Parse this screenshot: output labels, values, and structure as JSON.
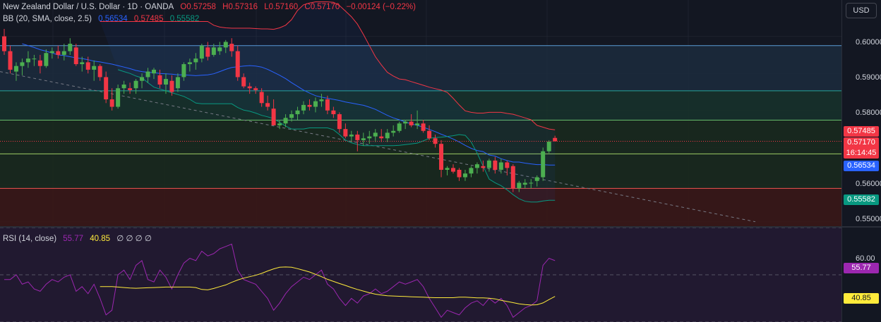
{
  "header": {
    "symbol": "New Zealand Dollar / U.S. Dollar · 1D · OANDA",
    "open": "O0.57258",
    "high": "H0.57316",
    "low": "L0.57160",
    "close": "C0.57170",
    "change": "−0.00124 (−0.22%)",
    "bb_label": "BB (20, SMA, close, 2.5)",
    "bb_basis": "0.56534",
    "bb_upper": "0.57485",
    "bb_lower": "0.55582",
    "rsi_label": "RSI (14, close)",
    "rsi_value": "55.77",
    "rsi_ma": "40.85",
    "rsi_nulls": "∅ ∅ ∅ ∅"
  },
  "currency_button": "USD",
  "price_axis": {
    "ticks": [
      "0.60000",
      "0.59000",
      "0.58000",
      "0.56000",
      "0.55000"
    ],
    "tags": {
      "upper": "0.57485",
      "last": "0.57170",
      "countdown": "16:14:45",
      "basis": "0.56534",
      "lower": "0.55582"
    }
  },
  "rsi_axis": {
    "ticks": [
      "60.00"
    ],
    "tags": {
      "rsi": "55.77",
      "ma": "40.85"
    }
  },
  "colors": {
    "background": "#131722",
    "up": "#4caf50",
    "down": "#f23645",
    "bb_basis": "#2962ff",
    "bb_upper": "#f23645",
    "bb_lower": "#089981",
    "rsi": "#9c27b0",
    "rsi_ma": "#ffeb3b"
  },
  "chart_data": [
    {
      "type": "candlestick",
      "title": "New Zealand Dollar / U.S. Dollar · 1D · OANDA",
      "ylim": [
        0.5488,
        0.6098
      ],
      "candles": [
        [
          0.6,
          0.602,
          0.595,
          0.596
        ],
        [
          0.596,
          0.5975,
          0.59,
          0.591
        ],
        [
          0.5905,
          0.593,
          0.588,
          0.592
        ],
        [
          0.592,
          0.594,
          0.5895,
          0.593
        ],
        [
          0.593,
          0.596,
          0.5915,
          0.594
        ],
        [
          0.594,
          0.595,
          0.592,
          0.594
        ],
        [
          0.5935,
          0.595,
          0.59,
          0.592
        ],
        [
          0.592,
          0.5965,
          0.5915,
          0.5955
        ],
        [
          0.5955,
          0.597,
          0.594,
          0.596
        ],
        [
          0.596,
          0.5975,
          0.594,
          0.595
        ],
        [
          0.595,
          0.598,
          0.5935,
          0.596
        ],
        [
          0.596,
          0.5995,
          0.595,
          0.598
        ],
        [
          0.597,
          0.598,
          0.592,
          0.5925
        ],
        [
          0.5925,
          0.5945,
          0.5905,
          0.593
        ],
        [
          0.593,
          0.5945,
          0.59,
          0.591
        ],
        [
          0.591,
          0.5935,
          0.588,
          0.592
        ],
        [
          0.592,
          0.5925,
          0.588,
          0.589
        ],
        [
          0.589,
          0.5905,
          0.582,
          0.583
        ],
        [
          0.583,
          0.586,
          0.58,
          0.581
        ],
        [
          0.581,
          0.587,
          0.5805,
          0.586
        ],
        [
          0.586,
          0.588,
          0.5845,
          0.587
        ],
        [
          0.586,
          0.5875,
          0.5845,
          0.5855
        ],
        [
          0.586,
          0.5885,
          0.5845,
          0.588
        ],
        [
          0.588,
          0.59,
          0.586,
          0.589
        ],
        [
          0.589,
          0.5915,
          0.5875,
          0.5905
        ],
        [
          0.59,
          0.5915,
          0.5885,
          0.591
        ],
        [
          0.5895,
          0.591,
          0.586,
          0.587
        ],
        [
          0.587,
          0.59,
          0.5845,
          0.5885
        ],
        [
          0.588,
          0.5895,
          0.584,
          0.585
        ],
        [
          0.586,
          0.59,
          0.585,
          0.589
        ],
        [
          0.589,
          0.593,
          0.588,
          0.5925
        ],
        [
          0.5925,
          0.594,
          0.5905,
          0.593
        ],
        [
          0.593,
          0.5955,
          0.591,
          0.594
        ],
        [
          0.594,
          0.598,
          0.593,
          0.5975
        ],
        [
          0.597,
          0.5985,
          0.5935,
          0.5945
        ],
        [
          0.595,
          0.598,
          0.5945,
          0.597
        ],
        [
          0.596,
          0.5985,
          0.595,
          0.597
        ],
        [
          0.597,
          0.599,
          0.5955,
          0.5985
        ],
        [
          0.598,
          0.5995,
          0.5945,
          0.596
        ],
        [
          0.596,
          0.5975,
          0.588,
          0.589
        ],
        [
          0.589,
          0.59,
          0.586,
          0.5865
        ],
        [
          0.5865,
          0.5875,
          0.5845,
          0.586
        ],
        [
          0.586,
          0.5865,
          0.5845,
          0.5855
        ],
        [
          0.585,
          0.586,
          0.581,
          0.582
        ],
        [
          0.582,
          0.584,
          0.58,
          0.581
        ],
        [
          0.5805,
          0.583,
          0.576,
          0.576
        ],
        [
          0.576,
          0.5775,
          0.575,
          0.5765
        ],
        [
          0.5765,
          0.579,
          0.5755,
          0.578
        ],
        [
          0.578,
          0.58,
          0.577,
          0.579
        ],
        [
          0.579,
          0.581,
          0.5775,
          0.58
        ],
        [
          0.58,
          0.5825,
          0.579,
          0.5815
        ],
        [
          0.5815,
          0.583,
          0.58,
          0.581
        ],
        [
          0.581,
          0.5835,
          0.5795,
          0.5825
        ],
        [
          0.5825,
          0.5845,
          0.581,
          0.583
        ],
        [
          0.583,
          0.584,
          0.579,
          0.58
        ],
        [
          0.58,
          0.581,
          0.578,
          0.579
        ],
        [
          0.579,
          0.5795,
          0.574,
          0.575
        ],
        [
          0.575,
          0.5765,
          0.5725,
          0.573
        ],
        [
          0.573,
          0.5745,
          0.5715,
          0.5735
        ],
        [
          0.5735,
          0.5745,
          0.569,
          0.572
        ],
        [
          0.572,
          0.574,
          0.5705,
          0.5725
        ],
        [
          0.5725,
          0.5745,
          0.571,
          0.573
        ],
        [
          0.573,
          0.575,
          0.5715,
          0.574
        ],
        [
          0.573,
          0.575,
          0.5715,
          0.5725
        ],
        [
          0.5725,
          0.575,
          0.5715,
          0.574
        ],
        [
          0.574,
          0.576,
          0.573,
          0.5745
        ],
        [
          0.5745,
          0.577,
          0.574,
          0.5765
        ],
        [
          0.5765,
          0.5775,
          0.575,
          0.577
        ],
        [
          0.577,
          0.579,
          0.5755,
          0.576
        ],
        [
          0.576,
          0.58,
          0.575,
          0.5765
        ],
        [
          0.5765,
          0.5775,
          0.574,
          0.5745
        ],
        [
          0.5745,
          0.576,
          0.572,
          0.5725
        ],
        [
          0.5725,
          0.5735,
          0.57,
          0.571
        ],
        [
          0.571,
          0.572,
          0.562,
          0.564
        ],
        [
          0.564,
          0.565,
          0.5625,
          0.5645
        ],
        [
          0.5645,
          0.5655,
          0.563,
          0.5635
        ],
        [
          0.564,
          0.5645,
          0.561,
          0.562
        ],
        [
          0.562,
          0.564,
          0.561,
          0.563
        ],
        [
          0.563,
          0.565,
          0.562,
          0.5645
        ],
        [
          0.5645,
          0.566,
          0.563,
          0.5655
        ],
        [
          0.565,
          0.5665,
          0.5635,
          0.5645
        ],
        [
          0.5645,
          0.567,
          0.5635,
          0.5665
        ],
        [
          0.5665,
          0.5675,
          0.563,
          0.564
        ],
        [
          0.564,
          0.567,
          0.563,
          0.566
        ],
        [
          0.566,
          0.5665,
          0.5625,
          0.5645
        ],
        [
          0.565,
          0.5655,
          0.558,
          0.559
        ],
        [
          0.559,
          0.561,
          0.558,
          0.5605
        ],
        [
          0.56,
          0.5615,
          0.559,
          0.5605
        ],
        [
          0.5605,
          0.5615,
          0.559,
          0.5605
        ],
        [
          0.561,
          0.5625,
          0.5595,
          0.562
        ],
        [
          0.562,
          0.57,
          0.561,
          0.569
        ],
        [
          0.569,
          0.572,
          0.5685,
          0.5716
        ],
        [
          0.5726,
          0.5732,
          0.5716,
          0.5717
        ]
      ],
      "bb_upper": [
        0.604,
        0.604,
        0.604,
        0.604,
        0.604,
        0.604,
        0.604,
        0.604,
        0.604,
        0.604,
        0.604,
        0.604,
        0.604,
        0.604,
        0.604,
        0.604,
        0.604,
        0.604,
        0.604,
        0.603,
        0.6025,
        0.6023,
        0.6022,
        0.6022,
        0.6022,
        0.6022,
        0.6021,
        0.602,
        0.602,
        0.6019,
        0.6023,
        0.603,
        0.6045,
        0.607,
        0.6085,
        0.609,
        0.6093,
        0.6093,
        0.6093,
        0.6092,
        0.6083,
        0.6068,
        0.6053,
        0.6033,
        0.6005,
        0.5975,
        0.5945,
        0.5923,
        0.5903,
        0.5893,
        0.5885,
        0.5883,
        0.5878,
        0.5873,
        0.5868,
        0.5863,
        0.5859,
        0.5855,
        0.5849,
        0.5833,
        0.5815,
        0.5799,
        0.5795,
        0.5793,
        0.5793,
        0.5795,
        0.5795,
        0.5795,
        0.5792,
        0.579,
        0.5785,
        0.578,
        0.5775,
        0.576,
        0.5755,
        0.575,
        0.5748
      ],
      "bb_basis": [
        0.598,
        0.5975,
        0.597,
        0.5964,
        0.596,
        0.5955,
        0.595,
        0.5948,
        0.5945,
        0.5942,
        0.594,
        0.5937,
        0.5933,
        0.5931,
        0.5928,
        0.5925,
        0.5921,
        0.5917,
        0.5913,
        0.5908,
        0.5905,
        0.5903,
        0.5902,
        0.59,
        0.5899,
        0.5898,
        0.5896,
        0.5896,
        0.5895,
        0.5894,
        0.5895,
        0.5896,
        0.5899,
        0.5905,
        0.5911,
        0.5916,
        0.5918,
        0.592,
        0.5921,
        0.592,
        0.5917,
        0.5911,
        0.5903,
        0.5895,
        0.5886,
        0.5875,
        0.5865,
        0.5855,
        0.5847,
        0.584,
        0.5836,
        0.5833,
        0.583,
        0.5827,
        0.5823,
        0.582,
        0.5817,
        0.5814,
        0.5809,
        0.5803,
        0.5795,
        0.5787,
        0.578,
        0.5775,
        0.5769,
        0.5764,
        0.576,
        0.5755,
        0.5749,
        0.5743,
        0.5736,
        0.573,
        0.5723,
        0.5715,
        0.5706,
        0.5698,
        0.5692,
        0.5689,
        0.568,
        0.5677,
        0.567,
        0.5665,
        0.5661,
        0.5661,
        0.5658,
        0.5656,
        0.5654,
        0.5654,
        0.5653,
        0.5653
      ],
      "bb_lower": [
        0.591,
        0.5905,
        0.59,
        0.5893,
        0.5888,
        0.5875,
        0.5863,
        0.5858,
        0.5853,
        0.5848,
        0.5843,
        0.5838,
        0.583,
        0.582,
        0.5818,
        0.5818,
        0.5818,
        0.5818,
        0.5818,
        0.5818,
        0.5808,
        0.5801,
        0.5798,
        0.5793,
        0.5787,
        0.5783,
        0.5778,
        0.5768,
        0.5758,
        0.575,
        0.575,
        0.575,
        0.5753,
        0.5753,
        0.5753,
        0.5753,
        0.5748,
        0.5735,
        0.572,
        0.5713,
        0.5708,
        0.5705,
        0.5705,
        0.5705,
        0.5705,
        0.5705,
        0.5705,
        0.5706,
        0.5708,
        0.571,
        0.5712,
        0.5718,
        0.5725,
        0.5727,
        0.5728,
        0.573,
        0.5732,
        0.5735,
        0.5733,
        0.5715,
        0.5685,
        0.565,
        0.5615,
        0.5605,
        0.5597,
        0.5586,
        0.5573,
        0.5562,
        0.5555,
        0.5553,
        0.5553,
        0.5556,
        0.5558,
        0.5558
      ],
      "levels": [
        0.5975,
        0.5853,
        0.5774,
        0.5683,
        0.559
      ],
      "trendline": [
        [
          0.5893,
          0.55
        ]
      ]
    },
    {
      "type": "line",
      "title": "RSI (14, close)",
      "ylim": [
        30,
        70
      ],
      "series": [
        {
          "name": "RSI",
          "values": [
            48,
            48,
            50,
            46,
            47,
            44,
            43,
            46,
            48,
            47,
            49,
            50,
            43,
            45,
            42,
            46,
            40,
            33,
            35,
            50,
            52,
            48,
            54,
            56,
            48,
            47,
            52,
            49,
            44,
            50,
            55,
            57,
            56,
            60,
            58,
            59,
            61,
            62,
            63,
            52,
            48,
            47,
            46,
            43,
            40,
            35,
            38,
            42,
            45,
            47,
            49,
            48,
            50,
            52,
            46,
            44,
            40,
            37,
            40,
            38,
            41,
            42,
            44,
            42,
            43,
            45,
            47,
            46,
            47,
            48,
            45,
            40,
            36,
            32,
            35,
            34,
            33,
            36,
            38,
            39,
            37,
            40,
            38,
            40,
            37,
            32,
            34,
            36,
            37,
            39,
            54,
            57,
            56
          ]
        },
        {
          "name": "RSI-based MA",
          "values": [
            45,
            45,
            45,
            44.8,
            44.6,
            44.4,
            44.3,
            44.4,
            44.5,
            44.6,
            44.7,
            44.8,
            44.8,
            44.8,
            44.8,
            44.8,
            44.6,
            43.8,
            43.6,
            44.2,
            45,
            45.7,
            46.8,
            47.8,
            48.6,
            49.2,
            49.8,
            50.6,
            51.6,
            52.5,
            53.2,
            53.3,
            53.2,
            52.6,
            51.9,
            51.2,
            50.2,
            49.2,
            48.1,
            47.2,
            46.3,
            45.5,
            44.6,
            43.8,
            43.1,
            42.4,
            41.8,
            41.4,
            41.1,
            41,
            40.9,
            40.8,
            40.7,
            40.6,
            40.5,
            40.4,
            40.3,
            40.3,
            40.3,
            40.3,
            40.5,
            40.5,
            40.4,
            40.2,
            40.2,
            40.1,
            39.8,
            39.2,
            38.7,
            38.2,
            37.7,
            37.4,
            37.2,
            37.3,
            38.1,
            39.5,
            40.85
          ]
        }
      ]
    }
  ]
}
